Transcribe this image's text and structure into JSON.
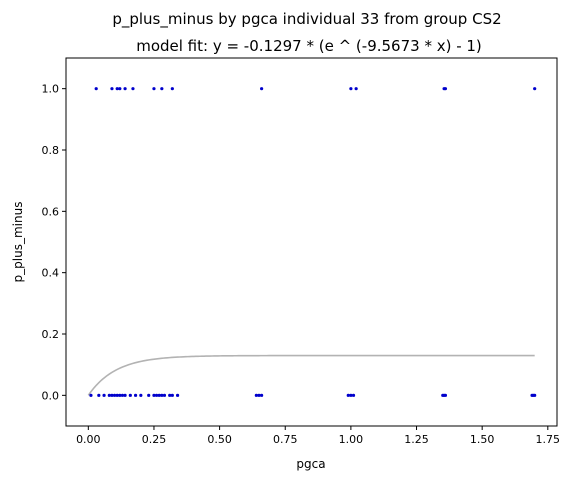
{
  "chart_data": {
    "type": "scatter",
    "title": "p_plus_minus by pgca individual 33 from group CS2",
    "subtitle": "model fit: y = -0.1297 * (e ^ (-9.5673 * x) - 1)",
    "xlabel": "pgca",
    "ylabel": "p_plus_minus",
    "xlim": [
      -0.085,
      1.785
    ],
    "ylim": [
      -0.1,
      1.1
    ],
    "x_ticks": [
      "0.00",
      "0.25",
      "0.50",
      "0.75",
      "1.00",
      "1.25",
      "1.50",
      "1.75"
    ],
    "x_tick_values": [
      0,
      0.25,
      0.5,
      0.75,
      1.0,
      1.25,
      1.5,
      1.75
    ],
    "y_ticks": [
      "0.0",
      "0.2",
      "0.4",
      "0.6",
      "0.8",
      "1.0"
    ],
    "y_tick_values": [
      0,
      0.2,
      0.4,
      0.6,
      0.8,
      1.0
    ],
    "grid": false,
    "point_color": "#0000cc",
    "fit_color": "#b3b3b3",
    "fit_model": {
      "a": -0.1297,
      "b": -9.5673
    },
    "points": [
      {
        "x": 0.01,
        "y": 0
      },
      {
        "x": 0.04,
        "y": 0
      },
      {
        "x": 0.06,
        "y": 0
      },
      {
        "x": 0.08,
        "y": 0
      },
      {
        "x": 0.09,
        "y": 0
      },
      {
        "x": 0.1,
        "y": 0
      },
      {
        "x": 0.11,
        "y": 0
      },
      {
        "x": 0.12,
        "y": 0
      },
      {
        "x": 0.13,
        "y": 0
      },
      {
        "x": 0.14,
        "y": 0
      },
      {
        "x": 0.16,
        "y": 0
      },
      {
        "x": 0.18,
        "y": 0
      },
      {
        "x": 0.2,
        "y": 0
      },
      {
        "x": 0.23,
        "y": 0
      },
      {
        "x": 0.25,
        "y": 0
      },
      {
        "x": 0.26,
        "y": 0
      },
      {
        "x": 0.27,
        "y": 0
      },
      {
        "x": 0.28,
        "y": 0
      },
      {
        "x": 0.29,
        "y": 0
      },
      {
        "x": 0.31,
        "y": 0
      },
      {
        "x": 0.32,
        "y": 0
      },
      {
        "x": 0.34,
        "y": 0
      },
      {
        "x": 0.64,
        "y": 0
      },
      {
        "x": 0.65,
        "y": 0
      },
      {
        "x": 0.66,
        "y": 0
      },
      {
        "x": 0.99,
        "y": 0
      },
      {
        "x": 1.0,
        "y": 0
      },
      {
        "x": 1.01,
        "y": 0
      },
      {
        "x": 1.35,
        "y": 0
      },
      {
        "x": 1.355,
        "y": 0
      },
      {
        "x": 1.36,
        "y": 0
      },
      {
        "x": 1.69,
        "y": 0
      },
      {
        "x": 1.695,
        "y": 0
      },
      {
        "x": 1.7,
        "y": 0
      },
      {
        "x": 0.03,
        "y": 1
      },
      {
        "x": 0.09,
        "y": 1
      },
      {
        "x": 0.11,
        "y": 1
      },
      {
        "x": 0.12,
        "y": 1
      },
      {
        "x": 0.14,
        "y": 1
      },
      {
        "x": 0.17,
        "y": 1
      },
      {
        "x": 0.25,
        "y": 1
      },
      {
        "x": 0.28,
        "y": 1
      },
      {
        "x": 0.32,
        "y": 1
      },
      {
        "x": 0.66,
        "y": 1
      },
      {
        "x": 1.0,
        "y": 1
      },
      {
        "x": 1.02,
        "y": 1
      },
      {
        "x": 1.355,
        "y": 1
      },
      {
        "x": 1.36,
        "y": 1
      },
      {
        "x": 1.7,
        "y": 1
      }
    ]
  }
}
